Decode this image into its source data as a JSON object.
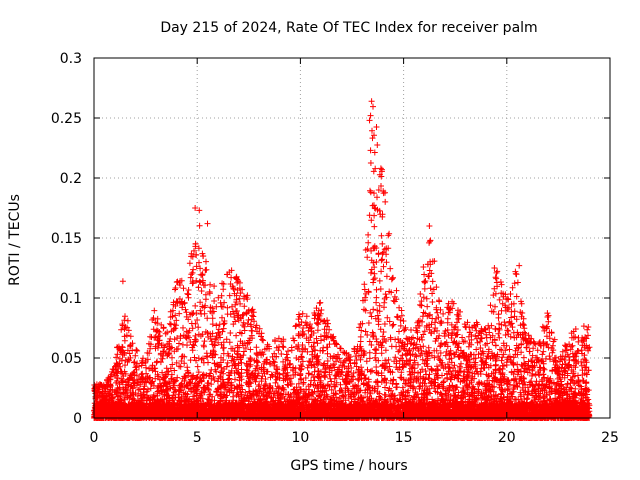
{
  "chart_data": {
    "type": "scatter",
    "title": "Day 215 of 2024, Rate Of TEC Index for receiver palm",
    "xlabel": "GPS time / hours",
    "ylabel": "ROTI / TECUs",
    "xlim": [
      0,
      25
    ],
    "ylim": [
      0,
      0.3
    ],
    "grid": true,
    "marker": "plus",
    "color": "#ff0000",
    "xticks": [
      {
        "value": 0,
        "label": "0"
      },
      {
        "value": 5,
        "label": "5"
      },
      {
        "value": 10,
        "label": "10"
      },
      {
        "value": 15,
        "label": "15"
      },
      {
        "value": 20,
        "label": "20"
      },
      {
        "value": 25,
        "label": "25"
      }
    ],
    "yticks": [
      {
        "value": 0,
        "label": "0"
      },
      {
        "value": 0.05,
        "label": "0.05"
      },
      {
        "value": 0.1,
        "label": "0.1"
      },
      {
        "value": 0.15,
        "label": "0.15"
      },
      {
        "value": 0.2,
        "label": "0.2"
      },
      {
        "value": 0.25,
        "label": "0.25"
      },
      {
        "value": 0.3,
        "label": "0.3"
      }
    ],
    "series": [
      {
        "name": "ROTI",
        "data_range_hours": [
          0,
          24
        ],
        "envelope": [
          {
            "x": 0.0,
            "y": 0.028
          },
          {
            "x": 0.5,
            "y": 0.03
          },
          {
            "x": 1.0,
            "y": 0.045
          },
          {
            "x": 1.2,
            "y": 0.07
          },
          {
            "x": 1.5,
            "y": 0.09
          },
          {
            "x": 2.0,
            "y": 0.06
          },
          {
            "x": 2.5,
            "y": 0.05
          },
          {
            "x": 3.0,
            "y": 0.1
          },
          {
            "x": 3.5,
            "y": 0.07
          },
          {
            "x": 4.0,
            "y": 0.12
          },
          {
            "x": 4.5,
            "y": 0.11
          },
          {
            "x": 5.0,
            "y": 0.175
          },
          {
            "x": 5.5,
            "y": 0.13
          },
          {
            "x": 6.0,
            "y": 0.1
          },
          {
            "x": 6.5,
            "y": 0.13
          },
          {
            "x": 7.0,
            "y": 0.125
          },
          {
            "x": 7.5,
            "y": 0.1
          },
          {
            "x": 8.0,
            "y": 0.08
          },
          {
            "x": 8.5,
            "y": 0.06
          },
          {
            "x": 9.0,
            "y": 0.07
          },
          {
            "x": 9.5,
            "y": 0.06
          },
          {
            "x": 10.0,
            "y": 0.095
          },
          {
            "x": 10.5,
            "y": 0.08
          },
          {
            "x": 11.0,
            "y": 0.105
          },
          {
            "x": 11.5,
            "y": 0.07
          },
          {
            "x": 12.0,
            "y": 0.06
          },
          {
            "x": 12.5,
            "y": 0.05
          },
          {
            "x": 13.0,
            "y": 0.09
          },
          {
            "x": 13.5,
            "y": 0.265
          },
          {
            "x": 14.0,
            "y": 0.21
          },
          {
            "x": 14.5,
            "y": 0.12
          },
          {
            "x": 15.0,
            "y": 0.085
          },
          {
            "x": 15.5,
            "y": 0.07
          },
          {
            "x": 16.0,
            "y": 0.135
          },
          {
            "x": 16.3,
            "y": 0.16
          },
          {
            "x": 16.8,
            "y": 0.09
          },
          {
            "x": 17.5,
            "y": 0.1
          },
          {
            "x": 18.0,
            "y": 0.085
          },
          {
            "x": 18.5,
            "y": 0.08
          },
          {
            "x": 19.0,
            "y": 0.075
          },
          {
            "x": 19.5,
            "y": 0.125
          },
          {
            "x": 20.0,
            "y": 0.1
          },
          {
            "x": 20.5,
            "y": 0.127
          },
          {
            "x": 21.0,
            "y": 0.07
          },
          {
            "x": 21.5,
            "y": 0.06
          },
          {
            "x": 22.0,
            "y": 0.095
          },
          {
            "x": 22.5,
            "y": 0.05
          },
          {
            "x": 23.0,
            "y": 0.07
          },
          {
            "x": 23.5,
            "y": 0.08
          },
          {
            "x": 24.0,
            "y": 0.08
          }
        ],
        "highlights": [
          {
            "x": 1.4,
            "y": 0.114
          },
          {
            "x": 4.9,
            "y": 0.175
          },
          {
            "x": 5.1,
            "y": 0.173
          },
          {
            "x": 5.5,
            "y": 0.162
          },
          {
            "x": 13.45,
            "y": 0.264
          },
          {
            "x": 13.4,
            "y": 0.252
          },
          {
            "x": 13.35,
            "y": 0.248
          },
          {
            "x": 13.4,
            "y": 0.223
          },
          {
            "x": 13.9,
            "y": 0.208
          },
          {
            "x": 13.95,
            "y": 0.207
          },
          {
            "x": 13.8,
            "y": 0.19
          },
          {
            "x": 13.5,
            "y": 0.177
          },
          {
            "x": 13.6,
            "y": 0.175
          },
          {
            "x": 16.25,
            "y": 0.16
          },
          {
            "x": 16.3,
            "y": 0.148
          },
          {
            "x": 19.4,
            "y": 0.125
          },
          {
            "x": 20.6,
            "y": 0.127
          }
        ]
      }
    ]
  }
}
